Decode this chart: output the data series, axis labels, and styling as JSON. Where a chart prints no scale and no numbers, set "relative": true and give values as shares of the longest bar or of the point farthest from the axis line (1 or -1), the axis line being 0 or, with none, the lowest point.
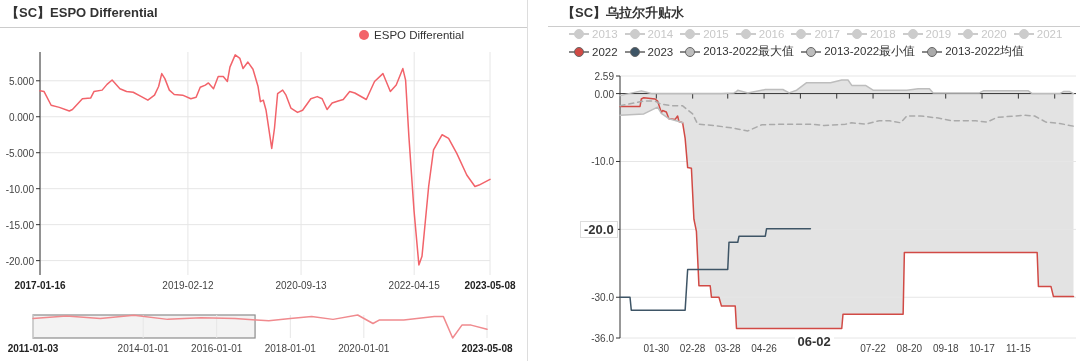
{
  "chart_data": [
    {
      "type": "line",
      "title": "【SC】ESPO Differential",
      "legend": "top right",
      "grid": true,
      "marker": "none",
      "x": [
        "2017-01-16",
        "2017-02-06",
        "2017-03-14",
        "2017-04-25",
        "2017-06-15",
        "2017-07-01",
        "2017-08-21",
        "2017-10-02",
        "2017-10-19",
        "2017-11-30",
        "2017-12-25",
        "2018-01-20",
        "2018-03-01",
        "2018-04-04",
        "2018-05-08",
        "2018-06-19",
        "2018-07-22",
        "2018-08-25",
        "2018-09-15",
        "2018-10-01",
        "2018-10-17",
        "2018-11-09",
        "2018-12-04",
        "2019-01-16",
        "2019-02-27",
        "2019-03-26",
        "2019-04-16",
        "2019-05-12",
        "2019-05-28",
        "2019-06-23",
        "2019-07-17",
        "2019-08-12",
        "2019-09-02",
        "2019-09-15",
        "2019-10-12",
        "2019-11-05",
        "2019-11-21",
        "2019-12-16",
        "2020-01-11",
        "2020-02-06",
        "2020-02-18",
        "2020-03-04",
        "2020-03-18",
        "2020-04-16",
        "2020-04-30",
        "2020-05-16",
        "2020-06-11",
        "2020-06-28",
        "2020-07-23",
        "2020-08-26",
        "2020-09-21",
        "2020-11-02",
        "2020-12-05",
        "2020-12-30",
        "2021-01-24",
        "2021-02-19",
        "2021-03-22",
        "2021-04-17",
        "2021-05-20",
        "2021-06-15",
        "2021-08-13",
        "2021-09-24",
        "2021-11-06",
        "2021-12-14",
        "2022-01-13",
        "2022-02-16",
        "2022-03-02",
        "2022-03-19",
        "2022-04-14",
        "2022-05-09",
        "2022-05-25",
        "2022-06-28",
        "2022-07-23",
        "2022-09-05",
        "2022-10-08",
        "2022-11-19",
        "2023-01-09",
        "2023-02-20",
        "2023-03-13",
        "2023-05-08"
      ],
      "series": [
        {
          "name": "ESPO Differential",
          "color": "#f2636a",
          "values": [
            3.6,
            3.5,
            1.6,
            1.3,
            0.8,
            1.0,
            2.5,
            2.6,
            3.5,
            3.7,
            4.5,
            5.1,
            3.9,
            3.5,
            3.4,
            2.8,
            2.3,
            3.0,
            4.2,
            6.0,
            5.3,
            3.7,
            3.1,
            3.0,
            2.5,
            2.7,
            4.1,
            4.4,
            4.7,
            3.9,
            5.6,
            5.6,
            4.9,
            6.9,
            8.6,
            8.1,
            6.7,
            7.6,
            6.6,
            4.2,
            2.1,
            2.3,
            0.9,
            -4.4,
            -1.6,
            3.2,
            3.7,
            3.0,
            1.2,
            0.6,
            0.9,
            2.5,
            2.8,
            2.5,
            1.0,
            1.9,
            2.2,
            2.4,
            3.5,
            3.3,
            2.4,
            4.9,
            6.0,
            3.5,
            4.4,
            6.7,
            5.1,
            -2.8,
            -13.0,
            -20.6,
            -19.4,
            -9.7,
            -4.6,
            -2.5,
            -3.0,
            -5.1,
            -8.1,
            -9.7,
            -9.5,
            -8.7
          ]
        }
      ],
      "xlim": [
        "2017-01-16",
        "2023-05-08"
      ],
      "xticks": [
        "2017-01-16",
        "2019-02-12",
        "2020-09-13",
        "2022-04-15",
        "2023-05-08"
      ],
      "ylim": [
        -22,
        9
      ],
      "yticks": [
        {
          "value": 5,
          "label": "5.000"
        },
        {
          "value": 0,
          "label": "0.000"
        },
        {
          "value": -5,
          "label": "-5.000"
        },
        {
          "value": -10,
          "label": "-10.00"
        },
        {
          "value": -15,
          "label": "-15.00"
        },
        {
          "value": -20,
          "label": "-20.00"
        }
      ]
    },
    {
      "type": "line",
      "relative": true,
      "tick_labels": "x",
      "grid": "x",
      "x": [
        "2011-01-03",
        "2011-12",
        "2012-11",
        "2013-10",
        "2014-09",
        "2015-08",
        "2016-07",
        "2017-02",
        "2017-06",
        "2018-01",
        "2018-08",
        "2019-03",
        "2019-11",
        "2020-04",
        "2020-06",
        "2021-02",
        "2021-12",
        "2022-03",
        "2022-06",
        "2022-09",
        "2022-12",
        "2023-05-08"
      ],
      "series": [
        {
          "color": "#f08a8e",
          "values": [
            0.85,
            0.96,
            0.85,
            0.99,
            0.81,
            0.88,
            0.85,
            0.78,
            0.75,
            0.85,
            0.93,
            0.81,
            1,
            0.63,
            0.78,
            0.78,
            0.93,
            0.93,
            0,
            0.56,
            0.56,
            0.38
          ]
        }
      ],
      "xlim": [
        "2011-01-03",
        "2023-05-08"
      ],
      "xticks": [
        "2011-01-03",
        "2014-01-01",
        "2016-01-01",
        "2018-01-01",
        "2020-01-01",
        "2023-05-08"
      ],
      "bands": [
        {
          "axis": "x",
          "from": "2011-01-03",
          "to": "2017-01-16",
          "color": "#8c8c8c"
        }
      ]
    },
    {
      "type": "line",
      "title": "【SC】乌拉尔升贴水",
      "legend": "top",
      "grid": "y",
      "marker": "none",
      "series": [
        {
          "name": "2013",
          "color": "#cccccc"
        },
        {
          "name": "2014",
          "color": "#cccccc"
        },
        {
          "name": "2015",
          "color": "#cccccc"
        },
        {
          "name": "2016",
          "color": "#cccccc"
        },
        {
          "name": "2017",
          "color": "#cccccc"
        },
        {
          "name": "2018",
          "color": "#cccccc"
        },
        {
          "name": "2019",
          "color": "#cccccc"
        },
        {
          "name": "2020",
          "color": "#cccccc"
        },
        {
          "name": "2021",
          "color": "#cccccc"
        },
        {
          "name": "2022",
          "color": "#d14a45",
          "x": [
            "--01-01",
            "--01-17",
            "--01-18",
            "--01-20",
            "--01-29",
            "--01-31",
            "--02-03",
            "--02-04",
            "--02-07",
            "--02-09",
            "--02-14",
            "--02-16",
            "--02-17",
            "--02-20",
            "--02-22",
            "--02-24",
            "--02-27",
            "--03-01",
            "--03-03",
            "--03-05",
            "--03-14",
            "--03-15",
            "--03-21",
            "--03-23",
            "--04-03",
            "--04-04",
            "--06-27",
            "--06-28",
            "--08-15",
            "--08-16",
            "--11-30",
            "--12-01",
            "--12-11",
            "--12-13",
            "--12-29"
          ],
          "values": [
            -1.9,
            -1.9,
            -0.8,
            -0.6,
            -0.8,
            -1.1,
            -2.8,
            -2.5,
            -2.7,
            -3.7,
            -3.8,
            -3.3,
            -4.1,
            -4.3,
            -6.6,
            -10.9,
            -11.0,
            -18.5,
            -20.3,
            -28.3,
            -28.3,
            -30.0,
            -30.0,
            -31.3,
            -31.3,
            -34.6,
            -34.6,
            -32.5,
            -32.5,
            -23.4,
            -23.4,
            -28.4,
            -28.4,
            -29.9,
            -29.9
          ]
        },
        {
          "name": "2023",
          "color": "#3e5566",
          "x": [
            "--01-01",
            "--01-09",
            "--01-10",
            "--02-22",
            "--02-24",
            "--03-28",
            "--03-29",
            "--04-05",
            "--04-06",
            "--04-27",
            "--04-28",
            "--06-02"
          ],
          "values": [
            -30.0,
            -30.0,
            -31.9,
            -31.9,
            -25.9,
            -25.9,
            -21.9,
            -21.9,
            -21.0,
            -21.0,
            -19.9,
            -19.9
          ]
        },
        {
          "name": "2013-2022最大值",
          "color": "#bdbdbd",
          "x": [
            "--01-01",
            "--01-18",
            "--01-20",
            "--01-26",
            "--01-31",
            "--02-03",
            "--02-09",
            "--02-17",
            "--02-20",
            "--02-22",
            "--02-24",
            "--02-27",
            "--03-01",
            "--03-03",
            "--03-05",
            "--03-14",
            "--03-15",
            "--03-21",
            "--03-23",
            "--04-02",
            "--04-03",
            "--04-04",
            "--04-05",
            "--04-13",
            "--04-27",
            "--05-11",
            "--05-16",
            "--05-22",
            "--05-30",
            "--06-18",
            "--06-27",
            "--06-28",
            "--07-02",
            "--07-05",
            "--07-16",
            "--07-22",
            "--08-15",
            "--08-16",
            "--08-18",
            "--08-27",
            "--09-05",
            "--09-08",
            "--10-15",
            "--10-18",
            "--11-23",
            "--11-26",
            "--11-30",
            "--12-01",
            "--12-11",
            "--12-13",
            "--12-18",
            "--12-21",
            "--12-26",
            "--12-29"
          ],
          "values": [
            -0.3,
            0.4,
            0.3,
            0.0,
            0.0,
            0.0,
            0.0,
            0.0,
            0.0,
            0.0,
            0.0,
            0.0,
            0.0,
            0.0,
            0.0,
            0.0,
            0.0,
            0.0,
            0.0,
            0.1,
            0.2,
            0.3,
            0.5,
            0.1,
            0.6,
            0.6,
            0.1,
            0.5,
            1.6,
            1.6,
            2.0,
            2.0,
            2.0,
            1.2,
            1.2,
            0.5,
            0.5,
            0.5,
            0.5,
            0.7,
            0.7,
            0.1,
            0.1,
            0.4,
            0.4,
            0.0,
            0.0,
            0.0,
            0.0,
            0.0,
            0.0,
            0.3,
            0.3,
            0.0
          ],
          "upper": [
            -0.3,
            0.4,
            0.3,
            0.0,
            0.0,
            0.0,
            0.0,
            0.0,
            0.0,
            0.0,
            0.0,
            0.0,
            0.0,
            0.0,
            0.0,
            0.0,
            0.0,
            0.0,
            0.0,
            0.1,
            0.2,
            0.3,
            0.5,
            0.1,
            0.6,
            0.6,
            0.1,
            0.5,
            1.6,
            1.6,
            2.0,
            2.0,
            2.0,
            1.2,
            1.2,
            0.5,
            0.5,
            0.5,
            0.5,
            0.7,
            0.7,
            0.1,
            0.1,
            0.4,
            0.4,
            0.0,
            0.0,
            0.0,
            0.0,
            0.0,
            0.0,
            0.3,
            0.3,
            0.0
          ],
          "lower": [
            -3.2,
            -3.0,
            -3.0,
            -2.5,
            -2.0,
            -2.9,
            -3.7,
            -4.1,
            -4.3,
            -6.6,
            -10.9,
            -11.0,
            -18.5,
            -20.3,
            -28.3,
            -28.3,
            -30.0,
            -30.0,
            -31.3,
            -31.3,
            -31.3,
            -34.6,
            -34.6,
            -34.6,
            -34.6,
            -34.6,
            -34.6,
            -34.6,
            -34.6,
            -34.6,
            -34.6,
            -32.5,
            -32.5,
            -32.5,
            -32.5,
            -32.5,
            -32.5,
            -23.4,
            -23.4,
            -23.4,
            -23.4,
            -23.4,
            -23.4,
            -23.4,
            -23.4,
            -23.4,
            -23.4,
            -28.4,
            -28.4,
            -29.9,
            -29.9,
            -29.9,
            -29.9,
            -29.9
          ]
        },
        {
          "name": "2013-2022最小值",
          "color": "#bdbdbd",
          "x": [
            "--01-01",
            "--01-20",
            "--01-31",
            "--02-03",
            "--02-09",
            "--02-17",
            "--02-20"
          ],
          "values": [
            -3.2,
            -3.0,
            -2.0,
            -2.9,
            -3.7,
            -4.1,
            -4.3
          ]
        },
        {
          "name": "2013-2022均值",
          "color": "#aaaaaa",
          "line_style": "dashed",
          "x": [
            "--01-01",
            "--01-20",
            "--01-29",
            "--02-02",
            "--02-11",
            "--02-20",
            "--02-28",
            "--03-04",
            "--03-17",
            "--04-02",
            "--04-13",
            "--04-24",
            "--05-11",
            "--06-02",
            "--06-13",
            "--06-30",
            "--07-05",
            "--07-16",
            "--07-27",
            "--08-04",
            "--08-13",
            "--08-18",
            "--08-29",
            "--09-12",
            "--09-23",
            "--10-12",
            "--10-21",
            "--10-29",
            "--11-20",
            "--11-28",
            "--12-07",
            "--12-18",
            "--12-29"
          ],
          "values": [
            -1.8,
            -1.1,
            -1.1,
            -1.5,
            -1.8,
            -1.8,
            -3.0,
            -4.5,
            -4.7,
            -5.1,
            -5.5,
            -4.6,
            -4.5,
            -4.5,
            -4.7,
            -4.5,
            -4.3,
            -4.5,
            -4.0,
            -4.0,
            -4.3,
            -3.3,
            -3.3,
            -3.6,
            -4.0,
            -4.0,
            -4.2,
            -3.5,
            -3.2,
            -3.3,
            -4.2,
            -4.4,
            -4.8
          ]
        }
      ],
      "xlim": [
        "--01-01",
        "--12-31"
      ],
      "xticks": [
        {
          "value": "--01-30",
          "label": "01-30"
        },
        {
          "value": "--02-28",
          "label": "02-28"
        },
        {
          "value": "--03-28",
          "label": "03-28"
        },
        {
          "value": "--04-26",
          "label": "04-26"
        },
        {
          "value": "--05-25",
          "label": null
        },
        {
          "value": "--06-23",
          "label": null
        },
        {
          "value": "--07-22",
          "label": "07-22"
        },
        {
          "value": "--08-20",
          "label": "08-20"
        },
        {
          "value": "--09-18",
          "label": "09-18"
        },
        {
          "value": "--10-17",
          "label": "10-17"
        },
        {
          "value": "--11-15",
          "label": "11-15"
        },
        {
          "value": "--12-14",
          "label": null
        }
      ],
      "ylim": [
        -36,
        2.59
      ],
      "yticks": [
        2.59,
        {
          "value": 0,
          "label": "0.00"
        },
        {
          "value": -10,
          "label": "-10.0"
        },
        {
          "value": -20,
          "label": null
        },
        {
          "value": -30,
          "label": "-30.0"
        },
        {
          "value": -36,
          "label": "-36.0"
        }
      ],
      "annotations": [
        {
          "text": "-20.0",
          "y": -20
        },
        "06-02"
      ]
    }
  ]
}
